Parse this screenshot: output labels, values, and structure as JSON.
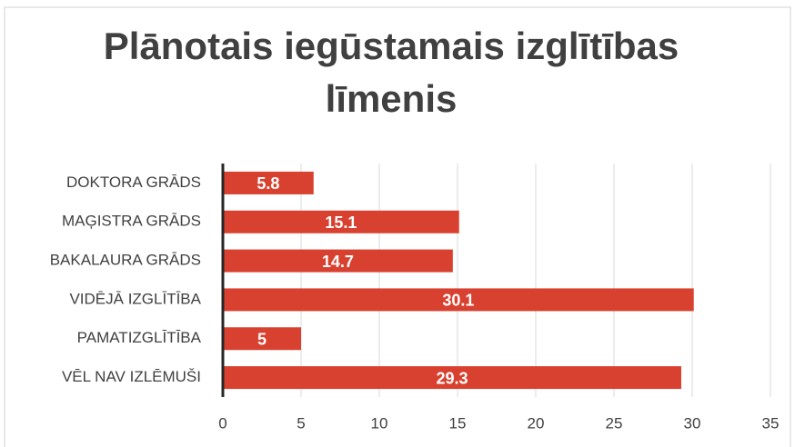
{
  "chart_data": {
    "type": "hbar",
    "title": "Plānotais iegūstamais izglītības līmenis",
    "categories": [
      "DOKTORA GRĀDS",
      "MAĢISTRA GRĀDS",
      "BAKALAURA GRĀDS",
      "VIDĒJĀ IZGLĪTĪBA",
      "PAMATIZGLĪTĪBA",
      "VĒL NAV IZLĒMUŠI"
    ],
    "values": [
      5.8,
      15.1,
      14.7,
      30.1,
      5,
      29.3
    ],
    "color": "#d8412f",
    "xlim": [
      0,
      35
    ],
    "xticks": [
      0,
      5,
      10,
      15,
      20,
      25,
      30,
      35
    ],
    "grid": true
  }
}
